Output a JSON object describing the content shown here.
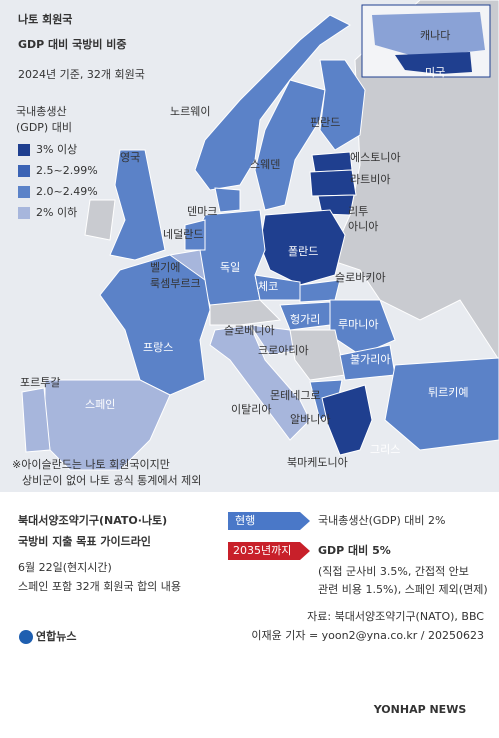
{
  "header": {
    "title": [
      "나토 회원국",
      "GDP 대비 국방비 비중"
    ],
    "subtitle": "2024년 기준, 32개 회원국"
  },
  "legend": {
    "title": [
      "국내총생산",
      "(GDP) 대비"
    ],
    "items": [
      "3% 이상",
      "2.5~2.99%",
      "2.0~2.49%",
      "2% 이하"
    ]
  },
  "countries": {
    "norway": "노르웨이",
    "uk": "영국",
    "finland": "핀란드",
    "sweden": "스웨덴",
    "estonia": "에스토니아",
    "latvia": "라트비아",
    "denmark": "덴마크",
    "lithuania": [
      "리투",
      "아니아"
    ],
    "netherlands": "네덜란드",
    "poland": "폴란드",
    "germany": "독일",
    "belgium": "벨기에",
    "luxembourg": "룩셈부르크",
    "czechia": "체코",
    "slovakia": "슬로바키아",
    "hungary": "헝가리",
    "romania": "루마니아",
    "slovenia": "슬로베니아",
    "croatia": "크로아티아",
    "france": "프랑스",
    "bulgaria": "불가리아",
    "portugal": "포르투갈",
    "spain": "스페인",
    "italy": "이탈리아",
    "montenegro": "몬테네그로",
    "albania": "알바니아",
    "turkiye": "튀르키예",
    "north_macedonia": "북마케도니아",
    "greece": "그리스",
    "canada": "캐나다",
    "usa": "미국"
  },
  "note": [
    "※아이슬란드는 나토 회원국이지만",
    "상비군이 없어 나토 공식 통계에서 제외"
  ],
  "guideline": {
    "title": [
      "북대서양조약기구(NATO·나토)",
      "국방비 지출 목표 가이드라인"
    ],
    "date": "6월 22일(현지시간)",
    "desc": "스페인 포함 32개 회원국 합의 내용",
    "current": {
      "label": "현행",
      "text": "국내총생산(GDP) 대비 2%"
    },
    "target": {
      "label": "2035년까지",
      "text": "GDP 대비 5%",
      "detail": [
        "(직접 군사비 3.5%, 간접적 안보",
        "관련 비용 1.5%), 스페인 제외(면제)"
      ]
    }
  },
  "footer": {
    "source": "자료: 북대서양조약기구(NATO), BBC",
    "byline": "이재윤 기자 = yoon2@yna.co.kr / 20250623",
    "logo": "연합뉴스",
    "watermark": "YONHAP NEWS"
  }
}
